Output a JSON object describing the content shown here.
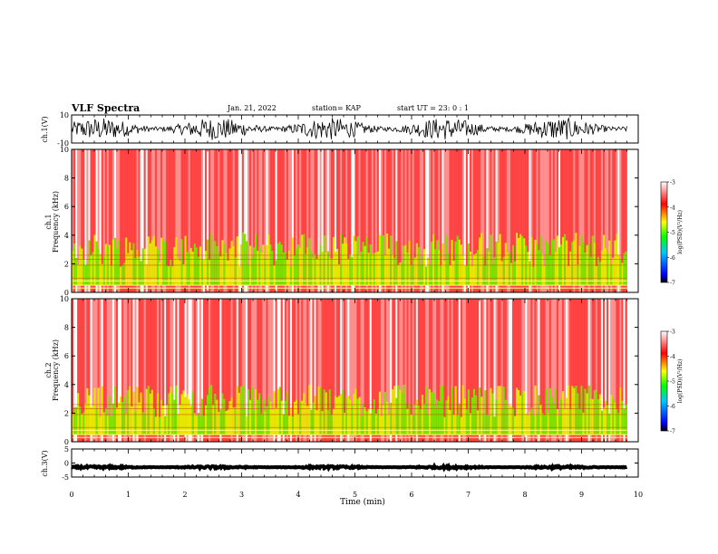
{
  "header": {
    "title": "VLF Spectra",
    "date": "Jan. 21, 2022",
    "station": "station= KAP",
    "start": "start  UT =   23: 0  : 1"
  },
  "chart_data": [
    {
      "type": "line",
      "panel": "ch1-waveform",
      "ylabel": "ch.1(V)",
      "ylim": [
        -10,
        10
      ],
      "yticks": [
        "10",
        "-10"
      ],
      "x_extent_min": [
        0,
        9.8
      ],
      "description_values": {
        "mean_V": 0,
        "amplitude_V": 8
      }
    },
    {
      "type": "heatmap",
      "panel": "ch1-spectrogram",
      "ylabel": "ch.1\nFrequency  (kHz)",
      "ylim": [
        0,
        10
      ],
      "yticks": [
        "0",
        "2",
        "4",
        "6",
        "8",
        "10"
      ],
      "x_extent_min": [
        0,
        9.8
      ],
      "colorbar": {
        "label": "log(PSD)(V²/Hz)",
        "range": [
          -7,
          -3
        ],
        "ticks": [
          "-3",
          "-4",
          "-5",
          "-6",
          "-7"
        ]
      },
      "activity_band_kHz": [
        0.5,
        4.2
      ]
    },
    {
      "type": "heatmap",
      "panel": "ch2-spectrogram",
      "ylabel": "ch.2\nFrequency  (kHz)",
      "ylim": [
        0,
        10
      ],
      "yticks": [
        "0",
        "2",
        "4",
        "6",
        "8",
        "10"
      ],
      "x_extent_min": [
        0,
        9.8
      ],
      "colorbar": {
        "label": "log(PSD)(V²/Hz)",
        "range": [
          -7,
          -3
        ],
        "ticks": [
          "-3",
          "-4",
          "-5",
          "-6",
          "-7"
        ]
      },
      "activity_band_kHz": [
        0.5,
        4.0
      ]
    },
    {
      "type": "line",
      "panel": "ch3-waveform",
      "ylabel": "ch.3(V)",
      "ylim": [
        -5,
        5
      ],
      "yticks": [
        "5",
        "0",
        "-5"
      ],
      "x_extent_min": [
        0,
        9.8
      ],
      "description_values": {
        "mean_V": -1.5,
        "amplitude_V": 0.4
      }
    }
  ],
  "xaxis": {
    "label": "Time  (min)",
    "range": [
      0,
      10
    ],
    "ticks": [
      "0",
      "1",
      "2",
      "3",
      "4",
      "5",
      "6",
      "7",
      "8",
      "9",
      "10"
    ]
  }
}
